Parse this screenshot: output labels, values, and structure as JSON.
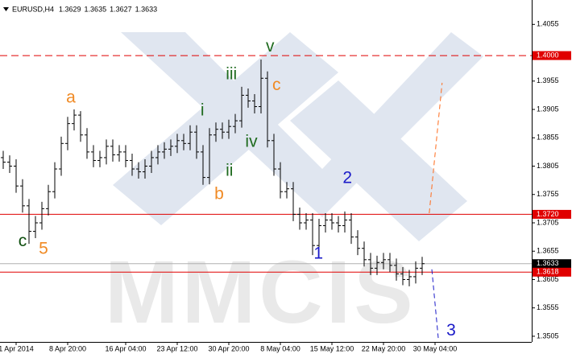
{
  "chart_data": {
    "type": "ohlc",
    "title": "EURUSD,H4",
    "header_values": [
      1.3629,
      1.3635,
      1.3627,
      1.3633
    ],
    "watermark": "MMCIS",
    "bar_color": "#000000",
    "grid": false,
    "xlim": [
      -0.5,
      82
    ],
    "ylim": [
      1.3495,
      1.4098
    ],
    "yticks": [
      1.4055,
      1.3955,
      1.3905,
      1.3855,
      1.3805,
      1.3755,
      1.3705,
      1.3655,
      1.3605,
      1.3555,
      1.3505
    ],
    "xticks": [
      {
        "value": 2,
        "label": "1 Apr 2014"
      },
      {
        "value": 10,
        "label": "8 Apr 20:00"
      },
      {
        "value": 19,
        "label": "16 Apr 04:00"
      },
      {
        "value": 27,
        "label": "23 Apr 12:00"
      },
      {
        "value": 35,
        "label": "30 Apr 20:00"
      },
      {
        "value": 43,
        "label": "8 May 04:00"
      },
      {
        "value": 51,
        "label": "15 May 12:00"
      },
      {
        "value": 59,
        "label": "22 May 20:00"
      },
      {
        "value": 67,
        "label": "30 May 04:00"
      }
    ],
    "open": [
      1.382,
      1.3812,
      1.3805,
      1.377,
      1.3735,
      1.369,
      1.3705,
      1.373,
      1.376,
      1.38,
      1.3845,
      1.388,
      1.3895,
      1.386,
      1.383,
      1.3815,
      1.382,
      1.384,
      1.3825,
      1.383,
      1.3815,
      1.38,
      1.3795,
      1.3805,
      1.382,
      1.383,
      1.3835,
      1.384,
      1.385,
      1.3845,
      1.3865,
      1.383,
      1.3785,
      1.386,
      1.387,
      1.3865,
      1.3875,
      1.3885,
      1.393,
      1.392,
      1.391,
      1.396,
      1.385,
      1.38,
      1.376,
      1.3765,
      1.372,
      1.3705,
      1.371,
      1.3665,
      1.37,
      1.371,
      1.3705,
      1.37,
      1.371,
      1.368,
      1.366,
      1.364,
      1.3625,
      1.3635,
      1.364,
      1.363,
      1.3615,
      1.3605,
      1.361,
      1.3625
    ],
    "high": [
      1.3832,
      1.3824,
      1.3817,
      1.3782,
      1.3747,
      1.3717,
      1.3742,
      1.3772,
      1.3812,
      1.3857,
      1.3892,
      1.3905,
      1.3902,
      1.3872,
      1.3842,
      1.3832,
      1.3852,
      1.3852,
      1.3842,
      1.3842,
      1.3827,
      1.3812,
      1.3817,
      1.3832,
      1.3842,
      1.3847,
      1.3852,
      1.3862,
      1.3862,
      1.3877,
      1.3877,
      1.3842,
      1.3872,
      1.3882,
      1.3882,
      1.3887,
      1.3897,
      1.3945,
      1.3942,
      1.3932,
      1.3993,
      1.3972,
      1.3862,
      1.3812,
      1.3777,
      1.3777,
      1.3732,
      1.3722,
      1.3722,
      1.3712,
      1.3722,
      1.3722,
      1.3717,
      1.3725,
      1.3722,
      1.3692,
      1.3672,
      1.3652,
      1.3647,
      1.3652,
      1.3652,
      1.3642,
      1.3627,
      1.3622,
      1.3637,
      1.3645
    ],
    "low": [
      1.38,
      1.3793,
      1.3758,
      1.3723,
      1.3668,
      1.3678,
      1.3693,
      1.3718,
      1.3748,
      1.3788,
      1.3833,
      1.3868,
      1.3848,
      1.3818,
      1.3803,
      1.3803,
      1.3808,
      1.3813,
      1.3813,
      1.3803,
      1.3788,
      1.3783,
      1.3783,
      1.3793,
      1.3808,
      1.3818,
      1.3823,
      1.3828,
      1.3833,
      1.3833,
      1.3818,
      1.3772,
      1.3773,
      1.3848,
      1.3853,
      1.3853,
      1.3863,
      1.3873,
      1.3908,
      1.3898,
      1.3898,
      1.3838,
      1.3788,
      1.3748,
      1.3748,
      1.3708,
      1.3693,
      1.3693,
      1.3648,
      1.3653,
      1.3688,
      1.3693,
      1.3688,
      1.3688,
      1.3668,
      1.3648,
      1.3628,
      1.3613,
      1.3613,
      1.3623,
      1.3618,
      1.3603,
      1.3595,
      1.3593,
      1.3598,
      1.3613
    ],
    "close": [
      1.3812,
      1.3805,
      1.377,
      1.3735,
      1.369,
      1.3705,
      1.373,
      1.376,
      1.38,
      1.3845,
      1.388,
      1.3895,
      1.386,
      1.383,
      1.3815,
      1.382,
      1.384,
      1.3825,
      1.383,
      1.3815,
      1.38,
      1.3795,
      1.3805,
      1.382,
      1.383,
      1.3835,
      1.384,
      1.385,
      1.3845,
      1.3865,
      1.383,
      1.3785,
      1.386,
      1.387,
      1.3865,
      1.3875,
      1.3885,
      1.393,
      1.392,
      1.391,
      1.396,
      1.385,
      1.38,
      1.376,
      1.3765,
      1.372,
      1.3705,
      1.371,
      1.3665,
      1.37,
      1.371,
      1.3705,
      1.37,
      1.371,
      1.368,
      1.366,
      1.364,
      1.3625,
      1.3635,
      1.364,
      1.363,
      1.3615,
      1.3605,
      1.361,
      1.3625,
      1.3633
    ],
    "levels": [
      {
        "price": {
          "value": 1.4,
          "label": "1.4000"
        },
        "color": "#e00000",
        "dashed": true
      },
      {
        "price": {
          "value": 1.372,
          "label": "1.3720"
        },
        "color": "#e00000",
        "dashed": false
      },
      {
        "price": 1.3633,
        "color": "#b0b0b0",
        "dashed": false,
        "label_color": "#000000"
      },
      {
        "price": 1.3618,
        "color": "#e00000",
        "dashed": false
      }
    ],
    "projections": [
      {
        "color": "#ff6a1a",
        "x": [
          66.1,
          68.1
        ],
        "y": [
          1.3722,
          1.3952
        ]
      },
      {
        "color": "#1a1ac8",
        "x": [
          66.5,
          67.5
        ],
        "y": [
          1.3623,
          1.3502
        ]
      }
    ],
    "annotations": [
      {
        "text": "v",
        "color": "#1f6b1f",
        "x": 41.4,
        "y": 1.4015
      },
      {
        "text": "iii",
        "color": "#1f6b1f",
        "x": 35.4,
        "y": 1.3966
      },
      {
        "text": "c",
        "color": "#f08a24",
        "x": 42.4,
        "y": 1.3947
      },
      {
        "text": "a",
        "color": "#f08a24",
        "x": 10.5,
        "y": 1.3925
      },
      {
        "text": "i",
        "color": "#1f6b1f",
        "x": 30.9,
        "y": 1.3902
      },
      {
        "text": "iv",
        "color": "#1f6b1f",
        "x": 38.5,
        "y": 1.3847
      },
      {
        "text": "ii",
        "color": "#1f6b1f",
        "x": 35.1,
        "y": 1.3796
      },
      {
        "text": "b",
        "color": "#f08a24",
        "x": 33.5,
        "y": 1.3755
      },
      {
        "text": "2",
        "color": "#1a1ac8",
        "x": 53.4,
        "y": 1.3783
      },
      {
        "text": "1",
        "color": "#1a1ac8",
        "x": 48.9,
        "y": 1.365
      },
      {
        "text": "c",
        "color": "#0f4f0f",
        "x": 3,
        "y": 1.3672
      },
      {
        "text": "5",
        "color": "#f08a24",
        "x": 6.25,
        "y": 1.3658
      },
      {
        "text": "3",
        "color": "#1a1ac8",
        "x": 69.5,
        "y": 1.3514
      }
    ]
  }
}
